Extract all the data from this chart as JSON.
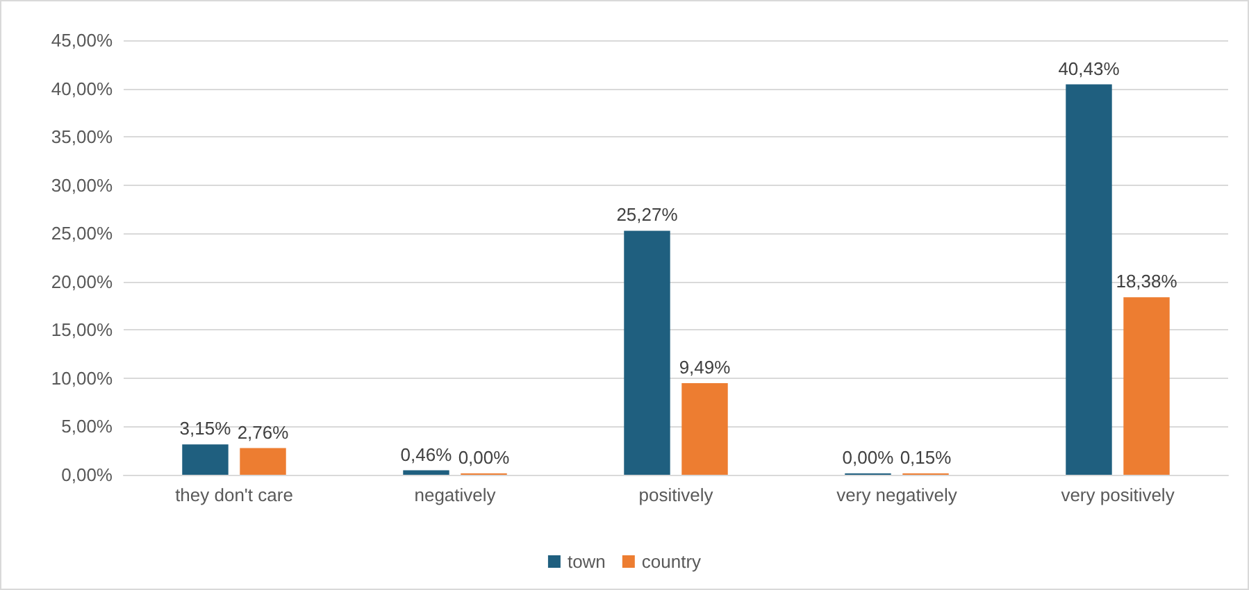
{
  "chart_data": {
    "type": "bar",
    "categories": [
      "they don't care",
      "negatively",
      "positively",
      "very negatively",
      "very positively"
    ],
    "series": [
      {
        "name": "town",
        "color": "#1f5f7f",
        "values": [
          3.15,
          0.46,
          25.27,
          0,
          40.43
        ],
        "value_labels": [
          "3,15%",
          "0,46%",
          "25,27%",
          "0,00%",
          "40,43%"
        ]
      },
      {
        "name": "country",
        "color": "#ed7d31",
        "values": [
          2.76,
          0,
          9.49,
          0.15,
          18.38
        ],
        "value_labels": [
          "2,76%",
          "0,00%",
          "9,49%",
          "0,15%",
          "18,38%"
        ]
      }
    ],
    "ylim": [
      0,
      45
    ],
    "yticks": [
      {
        "value": 0,
        "label": "0,00%"
      },
      {
        "value": 5,
        "label": "5,00%"
      },
      {
        "value": 10,
        "label": "10,00%"
      },
      {
        "value": 15,
        "label": "15,00%"
      },
      {
        "value": 20,
        "label": "20,00%"
      },
      {
        "value": 25,
        "label": "25,00%"
      },
      {
        "value": 30,
        "label": "30,00%"
      },
      {
        "value": 35,
        "label": "35,00%"
      },
      {
        "value": 40,
        "label": "40,00%"
      },
      {
        "value": 45,
        "label": "45,00%"
      }
    ],
    "grid": "y",
    "legend": "bottom"
  }
}
